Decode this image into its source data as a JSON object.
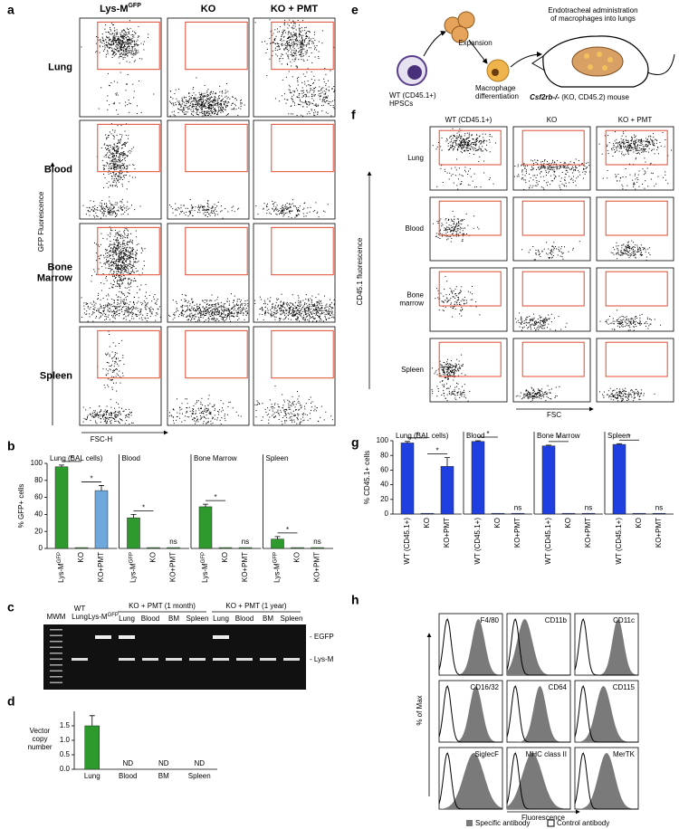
{
  "panel_a": {
    "label": "a",
    "columns": [
      "Lys-M",
      "KO",
      "KO + PMT"
    ],
    "column_superscript": "GFP",
    "rows": [
      [
        "Lung"
      ],
      [
        "Blood"
      ],
      [
        "Bone",
        "Marrow"
      ],
      [
        "Spleen"
      ]
    ],
    "y_axis": "GFP Fluorescence",
    "x_axis": "FSC-H"
  },
  "panel_b": {
    "label": "b",
    "type": "bar",
    "ylabel": "% GFP+ cells",
    "ylim": [
      0,
      100
    ],
    "yticks": [
      0,
      20,
      40,
      60,
      80,
      100
    ],
    "categories": [
      "Lys-M",
      "KO",
      "KO+PMT"
    ],
    "category_superscript": "GFP",
    "panels": [
      {
        "title": "Lung (BAL cells)",
        "values": [
          96,
          1,
          68
        ],
        "errors": [
          2,
          0,
          6
        ],
        "colors": [
          "#2e9a2e",
          "#2e9a2e",
          "#6fa8dc"
        ],
        "sig": [
          "*",
          "*"
        ]
      },
      {
        "title": "Blood",
        "values": [
          36,
          1,
          1
        ],
        "errors": [
          4,
          0,
          0
        ],
        "colors": [
          "#2e9a2e",
          "#2e9a2e",
          "#2e9a2e"
        ],
        "sig": [
          "*",
          "ns"
        ]
      },
      {
        "title": "Bone Marrow",
        "values": [
          49,
          1,
          1
        ],
        "errors": [
          3,
          0,
          0
        ],
        "colors": [
          "#2e9a2e",
          "#2e9a2e",
          "#2e9a2e"
        ],
        "sig": [
          "*",
          "ns"
        ]
      },
      {
        "title": "Spleen",
        "values": [
          11,
          1,
          1
        ],
        "errors": [
          3,
          0,
          0
        ],
        "colors": [
          "#2e9a2e",
          "#2e9a2e",
          "#2e9a2e"
        ],
        "sig": [
          "*",
          "ns"
        ]
      }
    ]
  },
  "panel_c": {
    "label": "c",
    "ladder": "MWM",
    "wt": [
      "WT",
      "Lung"
    ],
    "lysm": "Lys-M",
    "lysm_superscript": "GFP",
    "groups": [
      {
        "title": "KO + PMT (1 month)",
        "lanes": [
          "Lung",
          "Blood",
          "BM",
          "Spleen"
        ]
      },
      {
        "title": "KO + PMT (1 year)",
        "lanes": [
          "Lung",
          "Blood",
          "BM",
          "Spleen"
        ]
      }
    ],
    "bands": [
      "- EGFP",
      "- Lys-M"
    ]
  },
  "panel_d": {
    "label": "d",
    "type": "bar",
    "ylabel": [
      "Vector",
      "copy",
      "number"
    ],
    "ylim": [
      0,
      2
    ],
    "yticks": [
      {
        "value": 0,
        "label": "0.0"
      },
      {
        "value": 0.5,
        "label": "0.5"
      },
      {
        "value": 1,
        "label": "1.0"
      },
      {
        "value": 1.5,
        "label": "1.5"
      }
    ],
    "categories": [
      "Lung",
      "Blood",
      "BM",
      "Spleen"
    ],
    "values": [
      1.5,
      null,
      null,
      null
    ],
    "errors": [
      0.35,
      null,
      null,
      null
    ],
    "value_labels": [
      null,
      "ND",
      "ND",
      "ND"
    ],
    "color": "#2e9a2e"
  },
  "panel_e": {
    "label": "e",
    "expansion": "Expansion",
    "hpsc": [
      "WT (CD45.1+)",
      "HPSCs"
    ],
    "differentiation": [
      "Macrophage",
      "differentiation"
    ],
    "administration": [
      "Endotracheal administration",
      "of macrophages into lungs"
    ],
    "mouse_gene": "Csf2rb-/-",
    "mouse_rest": " (KO, CD45.2) mouse"
  },
  "panel_f": {
    "label": "f",
    "columns": [
      "WT (CD45.1+)",
      "KO",
      "KO + PMT"
    ],
    "rows": [
      [
        "Lung"
      ],
      [
        "Blood"
      ],
      [
        "Bone",
        "marrow"
      ],
      [
        "Spleen"
      ]
    ],
    "y_axis": "CD45.1 fluorescence",
    "x_axis": "FSC"
  },
  "panel_g": {
    "label": "g",
    "type": "bar",
    "ylabel": "% CD45.1+ cells",
    "ylim": [
      0,
      100
    ],
    "yticks": [
      0,
      20,
      40,
      60,
      80,
      100
    ],
    "categories": [
      "WT (CD45.1+)",
      "KO",
      "KO+PMT"
    ],
    "color": "#1f3fe0",
    "panels": [
      {
        "title": "Lung (BAL cells)",
        "values": [
          97,
          1,
          65
        ],
        "errors": [
          2,
          0,
          12
        ],
        "sig": [
          "*",
          "*"
        ]
      },
      {
        "title": "Blood",
        "values": [
          99,
          1,
          1
        ],
        "errors": [
          1,
          0,
          0
        ],
        "sig": [
          "*",
          "ns"
        ]
      },
      {
        "title": "Bone Marrow",
        "values": [
          93,
          1,
          1
        ],
        "errors": [
          1,
          0,
          0
        ],
        "sig": [
          "*",
          "ns"
        ]
      },
      {
        "title": "Spleen",
        "values": [
          95,
          1,
          1
        ],
        "errors": [
          1,
          0,
          0
        ],
        "sig": [
          "*",
          "ns"
        ]
      }
    ]
  },
  "panel_h": {
    "label": "h",
    "markers": [
      "F4/80",
      "CD11b",
      "CD11c",
      "CD16/32",
      "CD64",
      "CD115",
      "SiglecF",
      "MHC class II",
      "MerTK"
    ],
    "y_axis": "% of Max",
    "x_axis": "Fluorescence",
    "legend": [
      "Specific antibody",
      "Control antibody"
    ]
  }
}
